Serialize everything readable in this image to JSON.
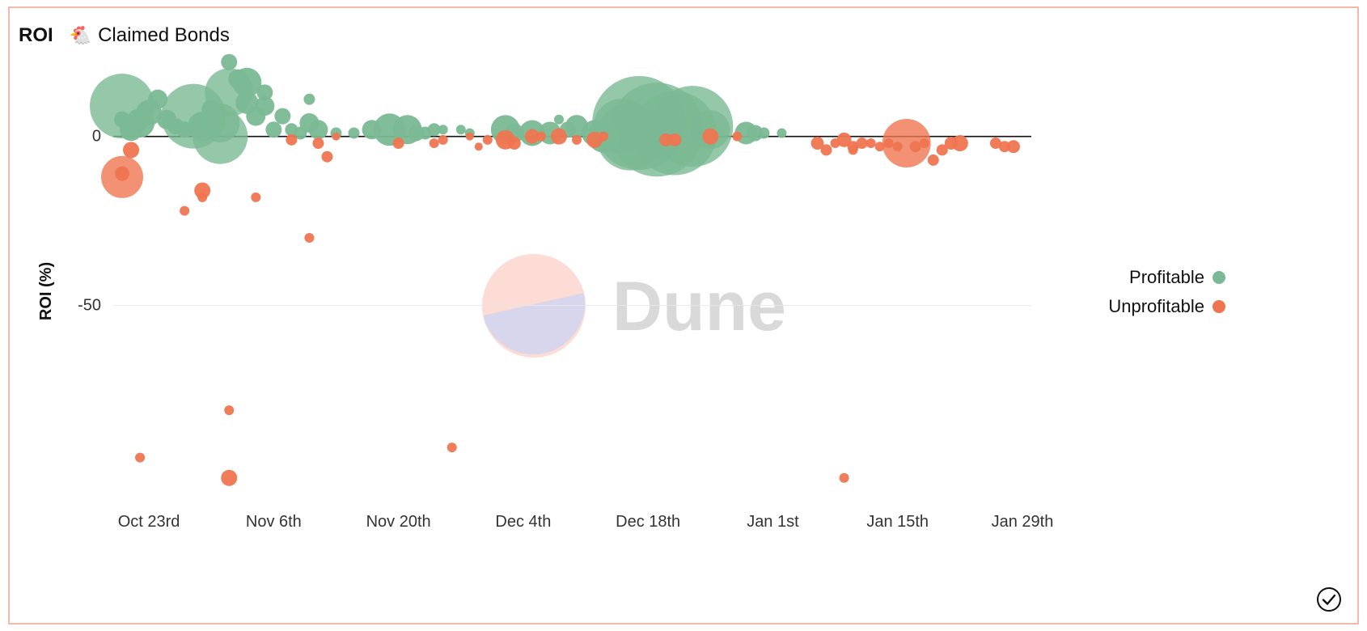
{
  "header": {
    "title": "ROI",
    "icon": "chicken-emoji",
    "icon_glyph": "🐔",
    "subtitle": "Claimed Bonds"
  },
  "watermark": {
    "text": "Dune",
    "logo": "dune-logo",
    "colors": {
      "top": "#fcdcd4",
      "bottom": "#d8d6ec",
      "text": "#d9d9d9"
    }
  },
  "status": {
    "icon": "check-circle-icon"
  },
  "chart_data": {
    "type": "scatter",
    "ylabel": "ROI (%)",
    "xlabel": "",
    "x_ticks": [
      "Oct 23rd",
      "Nov 6th",
      "Nov 20th",
      "Dec 4th",
      "Dec 18th",
      "Jan 1st",
      "Jan 15th",
      "Jan 29th"
    ],
    "y_ticks": [
      0,
      -50
    ],
    "xlim": [
      "2022-10-19",
      "2023-01-30"
    ],
    "ylim": [
      -108,
      26
    ],
    "bubble": true,
    "legend_position": "right",
    "series": [
      {
        "name": "Profitable",
        "color": "#7ab994",
        "points": [
          {
            "x": "2022-10-20",
            "y": 9,
            "r": 40
          },
          {
            "x": "2022-10-20",
            "y": 5,
            "r": 10
          },
          {
            "x": "2022-10-21",
            "y": 2,
            "r": 14
          },
          {
            "x": "2022-10-22",
            "y": 4,
            "r": 18
          },
          {
            "x": "2022-10-23",
            "y": 7,
            "r": 16
          },
          {
            "x": "2022-10-24",
            "y": 11,
            "r": 12
          },
          {
            "x": "2022-10-25",
            "y": 5,
            "r": 12
          },
          {
            "x": "2022-10-26",
            "y": 3,
            "r": 10
          },
          {
            "x": "2022-10-27",
            "y": 2,
            "r": 10
          },
          {
            "x": "2022-10-28",
            "y": 6,
            "r": 40
          },
          {
            "x": "2022-10-29",
            "y": 3,
            "r": 18
          },
          {
            "x": "2022-10-30",
            "y": 8,
            "r": 12
          },
          {
            "x": "2022-10-31",
            "y": 4,
            "r": 24
          },
          {
            "x": "2022-10-31",
            "y": 0,
            "r": 34
          },
          {
            "x": "2022-11-01",
            "y": 13,
            "r": 30
          },
          {
            "x": "2022-11-01",
            "y": 22,
            "r": 10
          },
          {
            "x": "2022-11-02",
            "y": 17,
            "r": 12
          },
          {
            "x": "2022-11-03",
            "y": 16,
            "r": 18
          },
          {
            "x": "2022-11-03",
            "y": 10,
            "r": 14
          },
          {
            "x": "2022-11-04",
            "y": 6,
            "r": 12
          },
          {
            "x": "2022-11-05",
            "y": 13,
            "r": 10
          },
          {
            "x": "2022-11-05",
            "y": 9,
            "r": 12
          },
          {
            "x": "2022-11-06",
            "y": 2,
            "r": 10
          },
          {
            "x": "2022-11-07",
            "y": 6,
            "r": 10
          },
          {
            "x": "2022-11-08",
            "y": 2,
            "r": 8
          },
          {
            "x": "2022-11-09",
            "y": 1,
            "r": 8
          },
          {
            "x": "2022-11-10",
            "y": 11,
            "r": 7
          },
          {
            "x": "2022-11-10",
            "y": 4,
            "r": 12
          },
          {
            "x": "2022-11-11",
            "y": 2,
            "r": 12
          },
          {
            "x": "2022-11-13",
            "y": 1,
            "r": 7
          },
          {
            "x": "2022-11-15",
            "y": 1,
            "r": 7
          },
          {
            "x": "2022-11-17",
            "y": 2,
            "r": 12
          },
          {
            "x": "2022-11-19",
            "y": 2,
            "r": 20
          },
          {
            "x": "2022-11-21",
            "y": 2,
            "r": 18
          },
          {
            "x": "2022-11-22",
            "y": 1,
            "r": 10
          },
          {
            "x": "2022-11-23",
            "y": 1,
            "r": 8
          },
          {
            "x": "2022-11-24",
            "y": 2,
            "r": 8
          },
          {
            "x": "2022-11-25",
            "y": 2,
            "r": 6
          },
          {
            "x": "2022-11-27",
            "y": 2,
            "r": 6
          },
          {
            "x": "2022-11-28",
            "y": 1,
            "r": 6
          },
          {
            "x": "2022-12-02",
            "y": 2,
            "r": 18
          },
          {
            "x": "2022-12-03",
            "y": 1,
            "r": 12
          },
          {
            "x": "2022-12-05",
            "y": 1,
            "r": 16
          },
          {
            "x": "2022-12-07",
            "y": 1,
            "r": 14
          },
          {
            "x": "2022-12-08",
            "y": 5,
            "r": 6
          },
          {
            "x": "2022-12-09",
            "y": 2,
            "r": 10
          },
          {
            "x": "2022-12-10",
            "y": 3,
            "r": 14
          },
          {
            "x": "2022-12-12",
            "y": 1,
            "r": 16
          },
          {
            "x": "2022-12-13",
            "y": 0,
            "r": 20
          },
          {
            "x": "2022-12-15",
            "y": 3,
            "r": 34
          },
          {
            "x": "2022-12-16",
            "y": 0,
            "r": 42
          },
          {
            "x": "2022-12-17",
            "y": 4,
            "r": 58
          },
          {
            "x": "2022-12-19",
            "y": 2,
            "r": 58
          },
          {
            "x": "2022-12-21",
            "y": 1,
            "r": 52
          },
          {
            "x": "2022-12-23",
            "y": 3,
            "r": 50
          },
          {
            "x": "2022-12-25",
            "y": 2,
            "r": 24
          },
          {
            "x": "2022-12-29",
            "y": 1,
            "r": 14
          },
          {
            "x": "2022-12-30",
            "y": 1,
            "r": 10
          },
          {
            "x": "2022-12-31",
            "y": 1,
            "r": 7
          },
          {
            "x": "2023-01-02",
            "y": 1,
            "r": 6
          }
        ]
      },
      {
        "name": "Unprofitable",
        "color": "#ef7550",
        "points": [
          {
            "x": "2022-10-20",
            "y": -12,
            "r": 26
          },
          {
            "x": "2022-10-20",
            "y": -11,
            "r": 9
          },
          {
            "x": "2022-10-21",
            "y": -4,
            "r": 10
          },
          {
            "x": "2022-10-22",
            "y": -95,
            "r": 6
          },
          {
            "x": "2022-10-27",
            "y": -22,
            "r": 6
          },
          {
            "x": "2022-10-29",
            "y": -16,
            "r": 10
          },
          {
            "x": "2022-10-29",
            "y": -18,
            "r": 6
          },
          {
            "x": "2022-11-01",
            "y": -81,
            "r": 6
          },
          {
            "x": "2022-11-01",
            "y": -101,
            "r": 10
          },
          {
            "x": "2022-11-04",
            "y": -18,
            "r": 6
          },
          {
            "x": "2022-11-08",
            "y": -1,
            "r": 7
          },
          {
            "x": "2022-11-10",
            "y": -30,
            "r": 6
          },
          {
            "x": "2022-11-11",
            "y": -2,
            "r": 7
          },
          {
            "x": "2022-11-12",
            "y": -6,
            "r": 7
          },
          {
            "x": "2022-11-13",
            "y": 0,
            "r": 5
          },
          {
            "x": "2022-11-20",
            "y": -2,
            "r": 7
          },
          {
            "x": "2022-11-24",
            "y": -2,
            "r": 6
          },
          {
            "x": "2022-11-25",
            "y": -1,
            "r": 6
          },
          {
            "x": "2022-11-26",
            "y": -92,
            "r": 6
          },
          {
            "x": "2022-11-28",
            "y": 0,
            "r": 5
          },
          {
            "x": "2022-11-29",
            "y": -3,
            "r": 5
          },
          {
            "x": "2022-11-30",
            "y": -1,
            "r": 6
          },
          {
            "x": "2022-12-02",
            "y": -1,
            "r": 12
          },
          {
            "x": "2022-12-03",
            "y": -2,
            "r": 8
          },
          {
            "x": "2022-12-05",
            "y": 0,
            "r": 9
          },
          {
            "x": "2022-12-06",
            "y": 0,
            "r": 6
          },
          {
            "x": "2022-12-08",
            "y": 0,
            "r": 10
          },
          {
            "x": "2022-12-10",
            "y": -1,
            "r": 6
          },
          {
            "x": "2022-12-12",
            "y": -1,
            "r": 10
          },
          {
            "x": "2022-12-13",
            "y": 0,
            "r": 6
          },
          {
            "x": "2022-12-20",
            "y": -1,
            "r": 8
          },
          {
            "x": "2022-12-21",
            "y": -1,
            "r": 8
          },
          {
            "x": "2022-12-25",
            "y": 0,
            "r": 10
          },
          {
            "x": "2022-12-28",
            "y": 0,
            "r": 6
          },
          {
            "x": "2023-01-06",
            "y": -2,
            "r": 8
          },
          {
            "x": "2023-01-07",
            "y": -4,
            "r": 7
          },
          {
            "x": "2023-01-08",
            "y": -2,
            "r": 6
          },
          {
            "x": "2023-01-09",
            "y": -101,
            "r": 6
          },
          {
            "x": "2023-01-09",
            "y": -1,
            "r": 9
          },
          {
            "x": "2023-01-10",
            "y": -3,
            "r": 7
          },
          {
            "x": "2023-01-10",
            "y": -4,
            "r": 6
          },
          {
            "x": "2023-01-11",
            "y": -2,
            "r": 7
          },
          {
            "x": "2023-01-12",
            "y": -2,
            "r": 6
          },
          {
            "x": "2023-01-13",
            "y": -3,
            "r": 6
          },
          {
            "x": "2023-01-14",
            "y": -2,
            "r": 6
          },
          {
            "x": "2023-01-15",
            "y": -3,
            "r": 6
          },
          {
            "x": "2023-01-16",
            "y": -2,
            "r": 30
          },
          {
            "x": "2023-01-17",
            "y": -3,
            "r": 7
          },
          {
            "x": "2023-01-18",
            "y": -2,
            "r": 6
          },
          {
            "x": "2023-01-19",
            "y": -7,
            "r": 7
          },
          {
            "x": "2023-01-20",
            "y": -4,
            "r": 7
          },
          {
            "x": "2023-01-21",
            "y": -2,
            "r": 8
          },
          {
            "x": "2023-01-22",
            "y": -2,
            "r": 10
          },
          {
            "x": "2023-01-26",
            "y": -2,
            "r": 7
          },
          {
            "x": "2023-01-27",
            "y": -3,
            "r": 7
          },
          {
            "x": "2023-01-28",
            "y": -3,
            "r": 8
          }
        ]
      }
    ]
  }
}
